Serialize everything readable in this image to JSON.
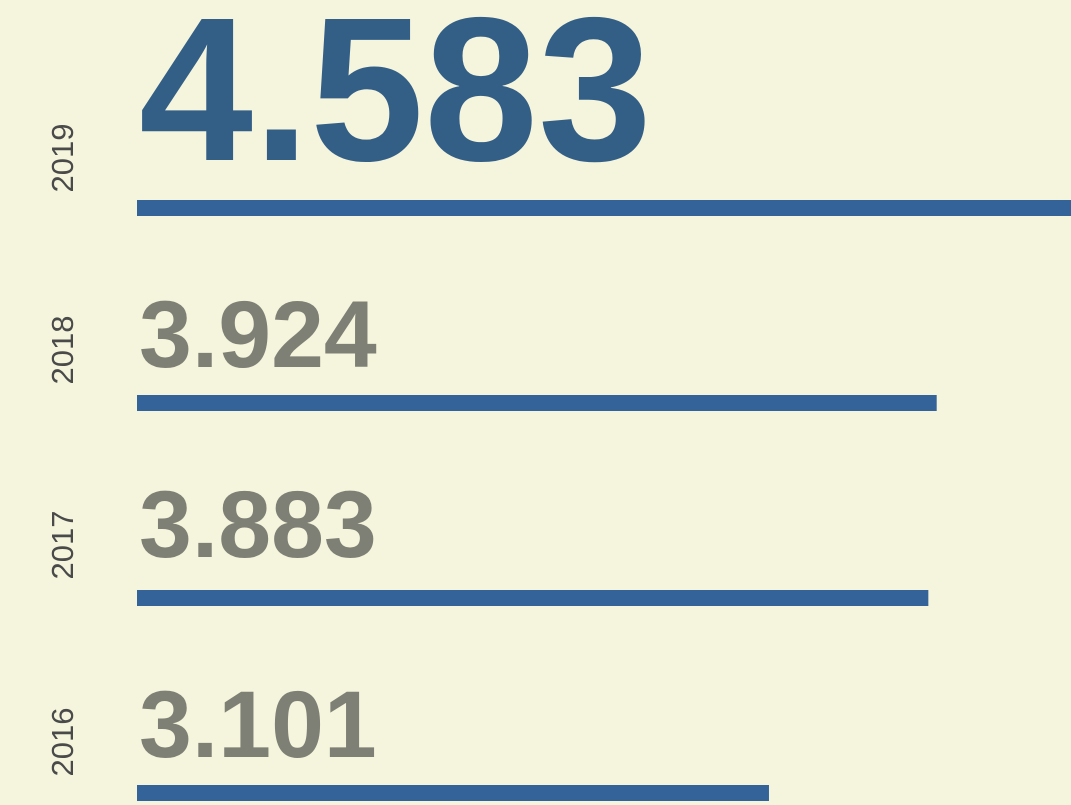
{
  "chart_data": {
    "type": "bar",
    "orientation": "horizontal",
    "categories": [
      "2019",
      "2018",
      "2017",
      "2016"
    ],
    "values": [
      4.583,
      3.924,
      3.883,
      3.101
    ],
    "color": "#34639a",
    "highlight_color": "#335f87",
    "label_color": "#7f8075",
    "xlim": [
      0,
      4.583
    ]
  }
}
